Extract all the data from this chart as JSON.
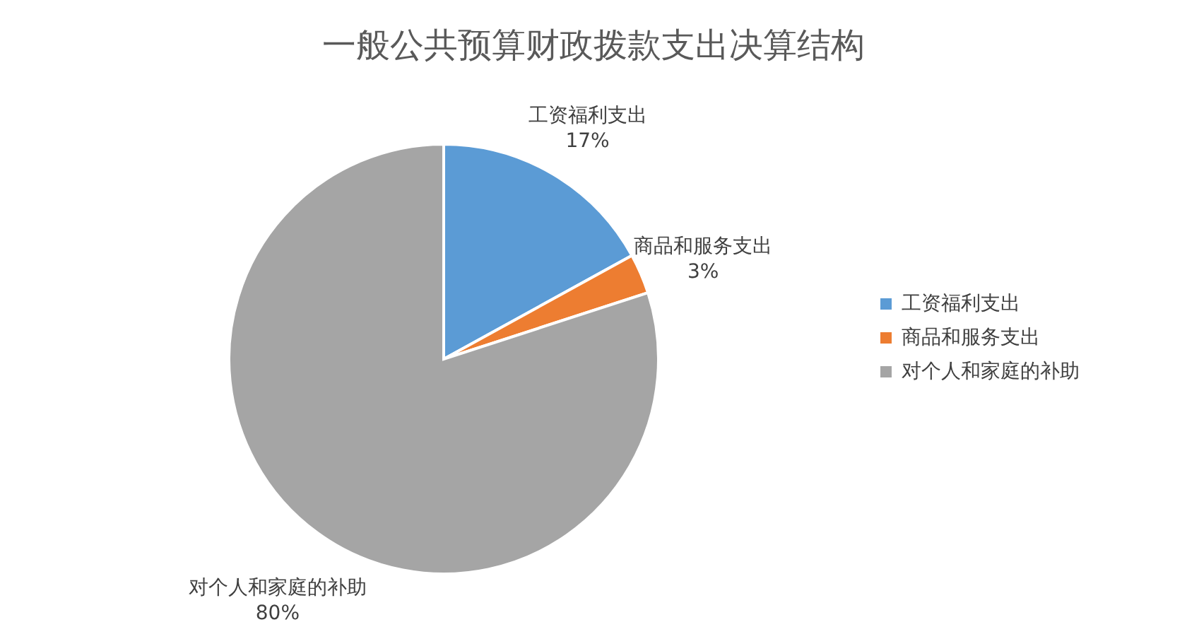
{
  "chart_data": {
    "type": "pie",
    "title": "一般公共预算财政拨款支出决算结构",
    "categories": [
      "工资福利支出",
      "商品和服务支出",
      "对个人和家庭的补助"
    ],
    "values": [
      17,
      3,
      80
    ],
    "value_labels": [
      "17%",
      "3%",
      "80%"
    ],
    "colors": [
      "#5b9bd5",
      "#ed7d31",
      "#a5a5a5"
    ],
    "legend": "right"
  }
}
